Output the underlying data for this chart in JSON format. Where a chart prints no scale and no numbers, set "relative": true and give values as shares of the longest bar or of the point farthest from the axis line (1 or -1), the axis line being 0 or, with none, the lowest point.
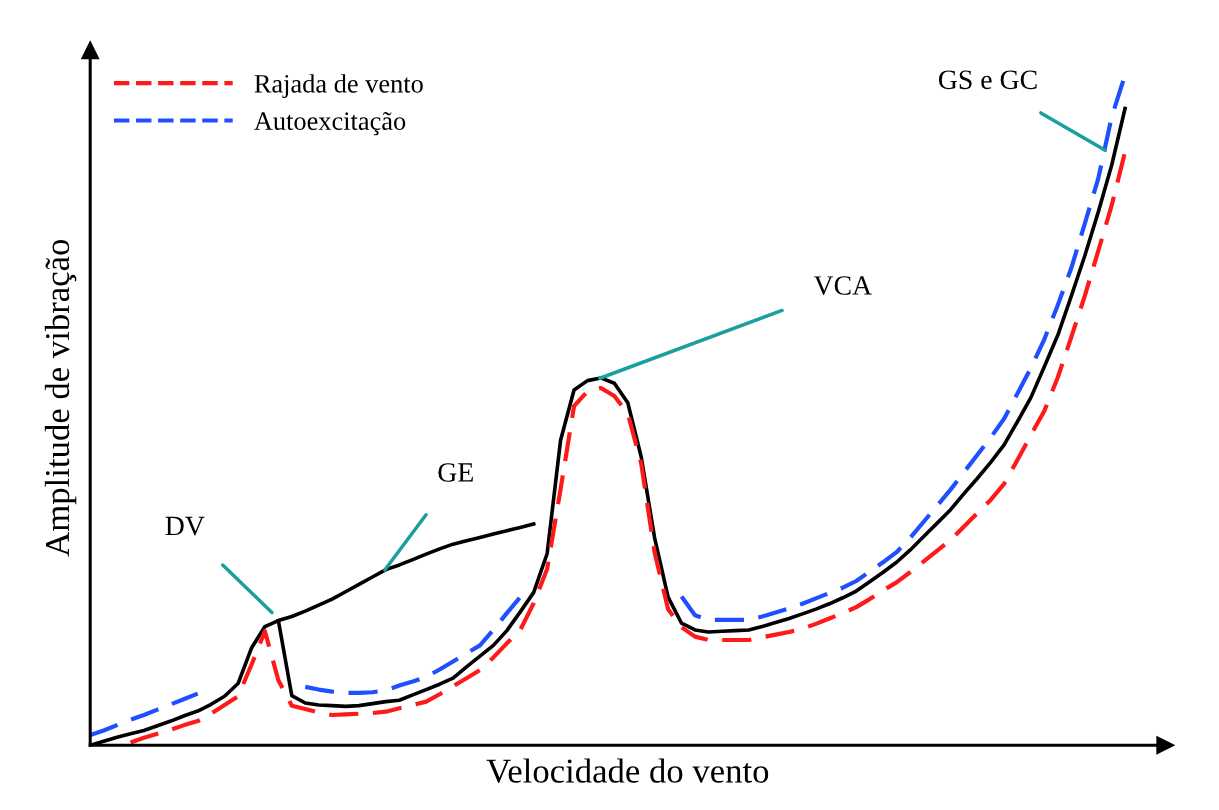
{
  "chart_data": {
    "type": "line",
    "relative": true,
    "legend": "top left",
    "xlabel": "Velocidade do vento",
    "ylabel": "Amplitude de vibração",
    "categories": [
      null,
      null,
      null,
      null,
      null,
      null,
      null,
      null,
      null,
      null,
      null,
      null,
      null,
      null,
      null,
      null,
      null,
      null,
      null,
      null,
      null,
      null,
      null,
      null,
      null,
      null,
      null,
      null,
      null,
      null,
      null,
      null,
      null,
      null,
      null,
      null,
      null,
      null,
      null,
      null,
      null,
      null,
      null,
      null,
      null,
      null,
      null,
      null,
      null,
      null,
      null,
      null,
      null,
      null,
      null,
      null,
      null,
      null,
      null,
      null,
      null,
      null,
      null,
      null,
      null,
      null,
      null,
      null,
      null,
      null,
      null,
      null,
      null,
      null,
      null,
      null,
      null,
      null,
      null,
      null,
      null
    ],
    "series": [
      {
        "color": "#000000",
        "line_style": "solid",
        "values": [
          0.0,
          0.006,
          0.012,
          0.017,
          0.022,
          0.029,
          0.036,
          0.044,
          0.051,
          0.061,
          0.073,
          0.092,
          0.145,
          0.177,
          0.186,
          0.074,
          0.063,
          0.06,
          0.059,
          0.058,
          0.059,
          0.062,
          0.065,
          0.067,
          0.075,
          0.083,
          0.091,
          0.1,
          0.117,
          0.133,
          0.149,
          0.171,
          0.199,
          0.228,
          0.286,
          0.455,
          0.53,
          0.544,
          0.548,
          0.54,
          0.511,
          0.43,
          0.309,
          0.221,
          0.182,
          0.172,
          0.169,
          0.17,
          0.171,
          0.172,
          0.177,
          0.183,
          0.189,
          0.196,
          0.203,
          0.211,
          0.22,
          0.23,
          0.244,
          0.258,
          0.273,
          0.291,
          0.311,
          0.331,
          0.351,
          0.375,
          0.398,
          0.422,
          0.448,
          0.483,
          0.519,
          0.565,
          0.612,
          0.67,
          0.73,
          0.795,
          0.865,
          0.95,
          null,
          null,
          null
        ]
      },
      {
        "color": "#000000",
        "line_style": "solid",
        "values": [
          null,
          null,
          null,
          null,
          null,
          null,
          null,
          null,
          null,
          null,
          null,
          null,
          null,
          null,
          0.186,
          0.192,
          0.2,
          0.209,
          0.218,
          0.229,
          0.24,
          0.251,
          0.262,
          0.269,
          0.277,
          0.285,
          0.293,
          0.3,
          0.305,
          0.31,
          0.315,
          0.32,
          0.325,
          0.33,
          null,
          null,
          null,
          null,
          null,
          null,
          null,
          null,
          null,
          null,
          null,
          null,
          null,
          null,
          null,
          null,
          null,
          null,
          null,
          null,
          null,
          null,
          null,
          null,
          null,
          null,
          null,
          null,
          null,
          null,
          null,
          null,
          null,
          null,
          null,
          null,
          null,
          null,
          null,
          null,
          null,
          null,
          null,
          null,
          null,
          null,
          null
        ]
      },
      {
        "name": "Rajada de vento",
        "color": "#ff1a1a",
        "line_style": "dashed",
        "values": [
          null,
          null,
          null,
          0.004,
          0.011,
          0.017,
          0.023,
          0.03,
          0.036,
          0.047,
          0.06,
          0.073,
          0.12,
          0.17,
          0.097,
          0.059,
          0.054,
          0.049,
          0.045,
          0.046,
          0.047,
          0.048,
          0.05,
          0.055,
          0.06,
          0.065,
          0.076,
          0.088,
          0.1,
          0.112,
          0.131,
          0.152,
          0.172,
          0.212,
          0.263,
          0.382,
          0.506,
          0.528,
          0.533,
          0.521,
          0.495,
          0.42,
          0.287,
          0.203,
          0.176,
          0.162,
          0.157,
          0.157,
          0.157,
          0.157,
          0.161,
          0.165,
          0.169,
          0.174,
          0.181,
          0.189,
          0.197,
          0.206,
          0.218,
          0.231,
          0.243,
          0.258,
          0.274,
          0.29,
          0.306,
          0.326,
          0.346,
          0.366,
          0.39,
          0.426,
          0.463,
          0.499,
          0.549,
          0.609,
          0.67,
          0.737,
          0.805,
          0.885,
          null,
          null,
          null
        ]
      },
      {
        "name": "Autoexcitação",
        "color": "#1f4fff",
        "line_style": "dashed",
        "values": [
          0.015,
          0.022,
          0.03,
          0.038,
          0.045,
          0.053,
          0.061,
          0.069,
          0.077,
          null,
          null,
          null,
          null,
          null,
          null,
          null,
          0.087,
          0.083,
          0.08,
          0.078,
          0.078,
          0.079,
          0.082,
          0.089,
          0.095,
          0.102,
          0.113,
          0.125,
          0.137,
          0.149,
          0.172,
          0.197,
          0.221,
          null,
          null,
          null,
          null,
          null,
          null,
          null,
          null,
          null,
          null,
          null,
          0.222,
          0.194,
          0.187,
          0.187,
          0.187,
          0.187,
          0.192,
          0.198,
          0.204,
          0.211,
          0.219,
          0.227,
          0.235,
          0.245,
          0.259,
          0.273,
          0.288,
          0.309,
          0.333,
          0.357,
          0.381,
          0.407,
          0.433,
          0.459,
          0.487,
          0.525,
          0.563,
          0.606,
          0.657,
          0.712,
          0.778,
          0.845,
          0.937,
          1.0,
          null,
          null,
          null
        ]
      }
    ],
    "annotations": [
      "DV",
      "GE",
      "VCA",
      "GS e GC"
    ]
  }
}
